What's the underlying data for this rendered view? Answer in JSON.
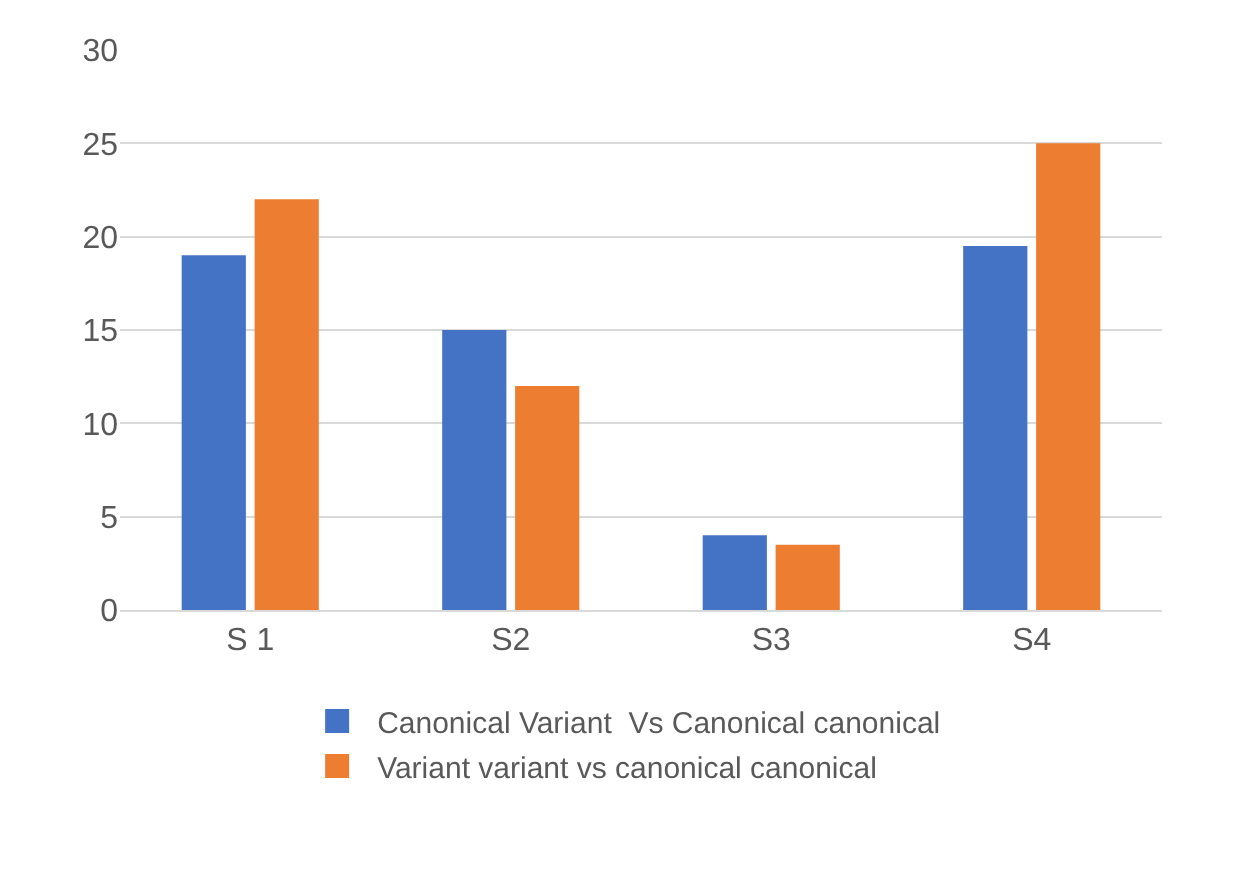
{
  "chart_data": {
    "type": "bar",
    "categories": [
      "S 1",
      "S2",
      "S3",
      "S4"
    ],
    "series": [
      {
        "name": "Canonical Variant  Vs Canonical canonical",
        "color": "#4472c4",
        "values": [
          19,
          15,
          4,
          19.5
        ]
      },
      {
        "name": "Variant variant vs canonical canonical",
        "color": "#ed7d31",
        "values": [
          22,
          12,
          3.5,
          25
        ]
      }
    ],
    "ylim": [
      0,
      30
    ],
    "yticks": [
      0,
      5,
      10,
      15,
      20,
      25,
      30
    ],
    "grid": "y",
    "legend": "bottom"
  }
}
